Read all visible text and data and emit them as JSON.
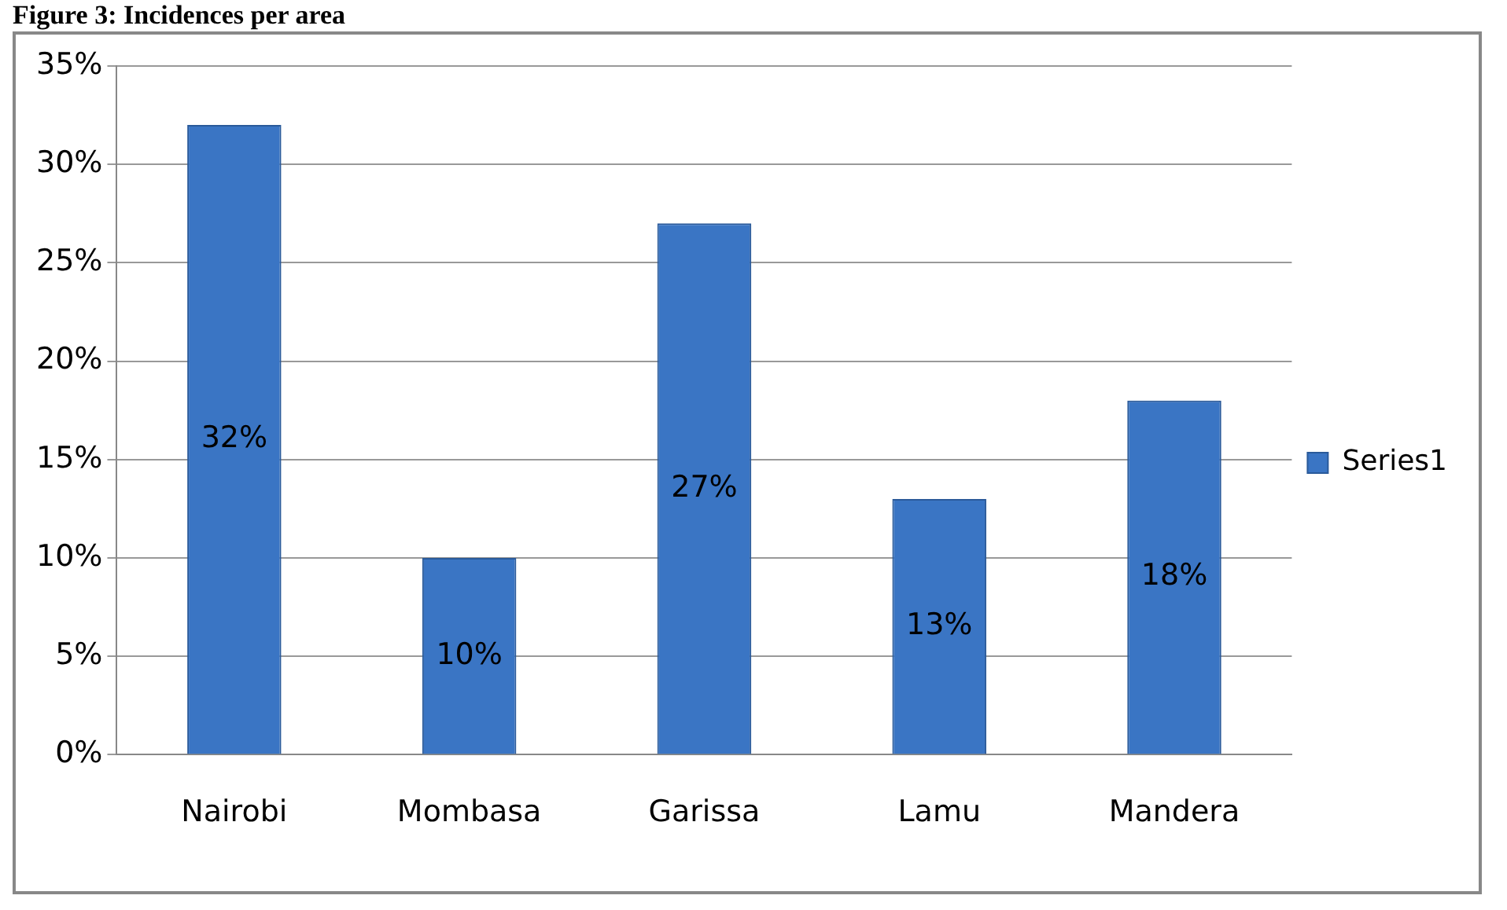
{
  "chart_data": {
    "type": "bar",
    "title": "Figure 3: Incidences per area",
    "categories": [
      "Nairobi",
      "Mombasa",
      "Garissa",
      "Lamu",
      "Mandera"
    ],
    "series": [
      {
        "name": "Series1",
        "color": "#3a75c4",
        "values": [
          32,
          10,
          27,
          13,
          18
        ],
        "value_labels": [
          "32%",
          "10%",
          "27%",
          "13%",
          "18%"
        ]
      }
    ],
    "ylim": [
      0,
      35
    ],
    "yticks": [
      {
        "value": 0,
        "label": "0%"
      },
      {
        "value": 5,
        "label": "5%"
      },
      {
        "value": 10,
        "label": "10%"
      },
      {
        "value": 15,
        "label": "15%"
      },
      {
        "value": 20,
        "label": "20%"
      },
      {
        "value": 25,
        "label": "25%"
      },
      {
        "value": 30,
        "label": "30%"
      },
      {
        "value": 35,
        "label": "35%"
      }
    ],
    "grid": "y",
    "legend": "right"
  }
}
